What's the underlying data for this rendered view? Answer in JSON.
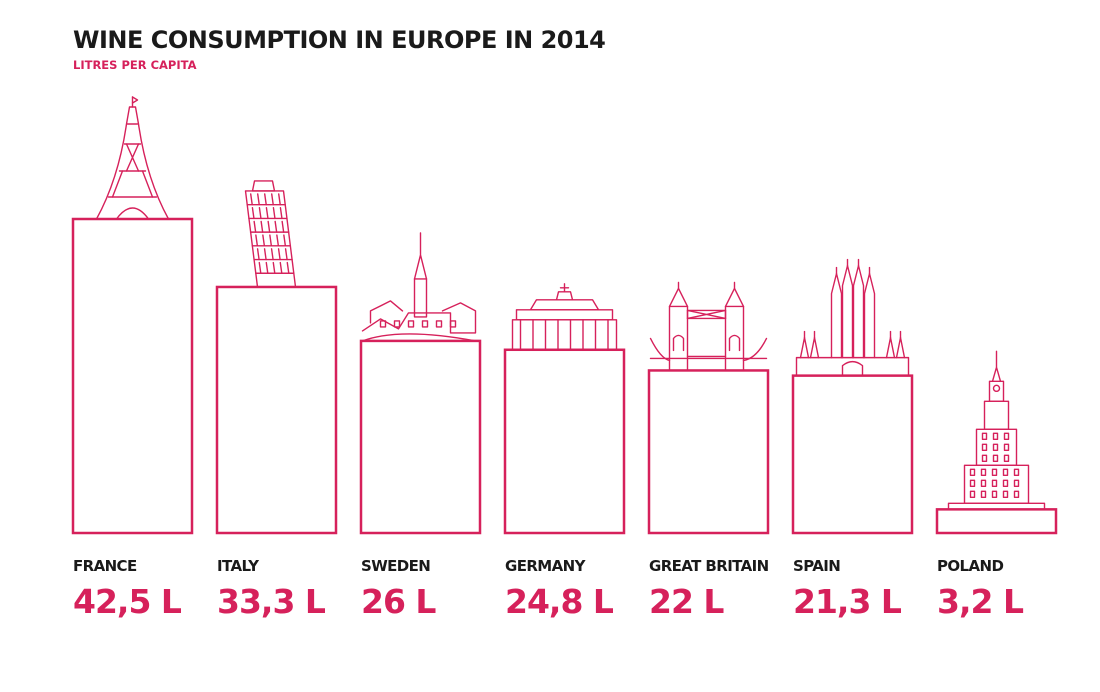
{
  "colors": {
    "accent": "#d6215b",
    "text": "#1a1a1a",
    "background": "#ffffff"
  },
  "chart_data": {
    "type": "bar",
    "title": "WINE CONSUMPTION IN EUROPE IN 2014",
    "subtitle": "LITRES PER CAPITA",
    "categories": [
      "FRANCE",
      "ITALY",
      "SWEDEN",
      "GERMANY",
      "GREAT BRITAIN",
      "SPAIN",
      "POLAND"
    ],
    "values": [
      42.5,
      33.3,
      26,
      24.8,
      22,
      21.3,
      3.2
    ],
    "value_labels": [
      "42,5 L",
      "33,3 L",
      "26 L",
      "24,8 L",
      "22 L",
      "21,3 L",
      "3,2 L"
    ],
    "landmark_icons": [
      "eiffel-tower-icon",
      "leaning-tower-of-pisa-icon",
      "stockholm-city-hall-icon",
      "brandenburg-gate-icon",
      "tower-bridge-icon",
      "sagrada-familia-icon",
      "palace-of-culture-icon"
    ],
    "xlabel": "",
    "ylabel": "",
    "ylim": [
      0,
      42.5
    ],
    "grid": false,
    "legend": "none"
  }
}
